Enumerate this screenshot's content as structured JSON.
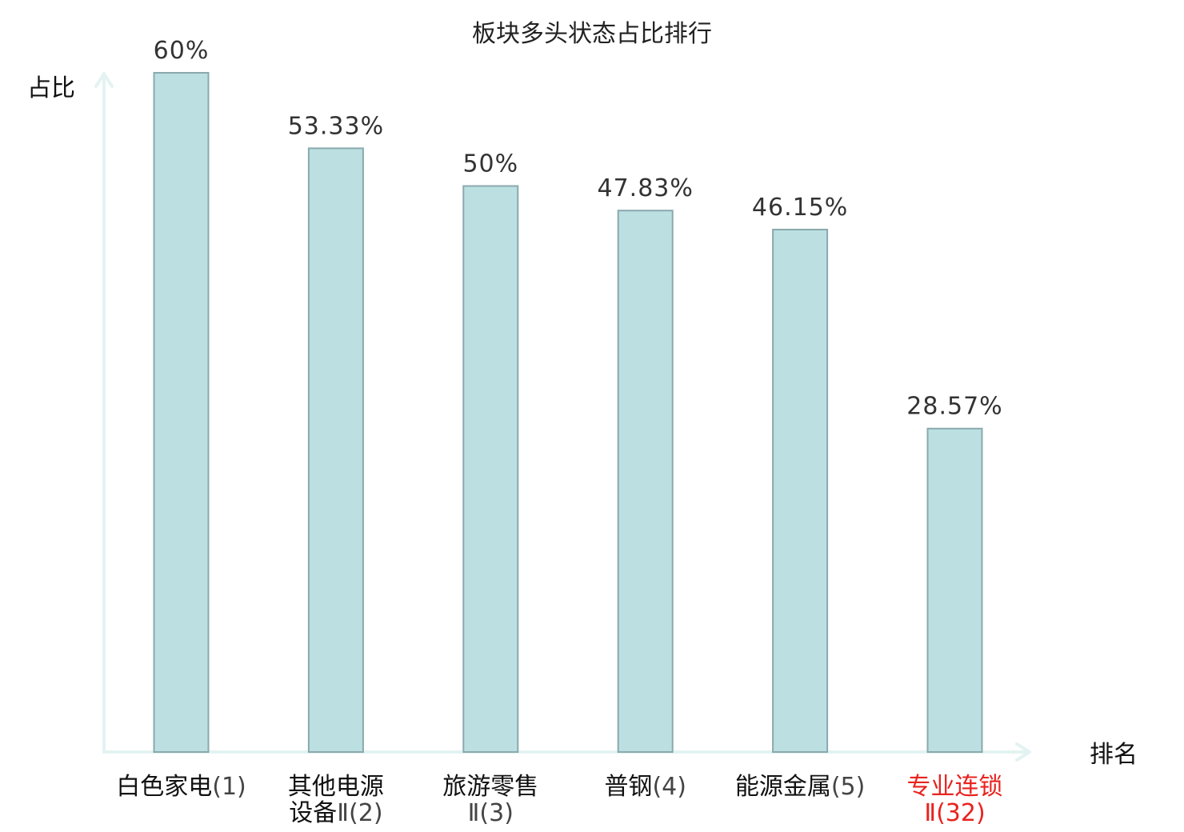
{
  "chart_data": {
    "type": "bar",
    "title": "板块多头状态占比排行",
    "ylabel": "占比",
    "xlabel": "排名",
    "ylim": [
      0,
      60
    ],
    "categories": [
      [
        "白色家电",
        "(1)"
      ],
      [
        "其他电源",
        "设备Ⅱ(2)"
      ],
      [
        "旅游零售",
        "Ⅱ(3)"
      ],
      [
        "普钢",
        "(4)"
      ],
      [
        "能源金属",
        "(5)"
      ],
      [
        "专业连锁",
        "Ⅱ(32)"
      ]
    ],
    "values": [
      60,
      53.33,
      50,
      47.83,
      46.15,
      28.57
    ],
    "value_labels": [
      "60%",
      "53.33%",
      "50%",
      "47.83%",
      "46.15%",
      "28.57%"
    ],
    "highlight_index": 5,
    "grid": false,
    "colors": {
      "bar_fill": "#bce0e2",
      "bar_stroke": "#8aa9ad",
      "axis": "#e3f3f1",
      "highlight_text": "#e8231f",
      "text": "#111111",
      "paren_text": "#444444"
    }
  }
}
